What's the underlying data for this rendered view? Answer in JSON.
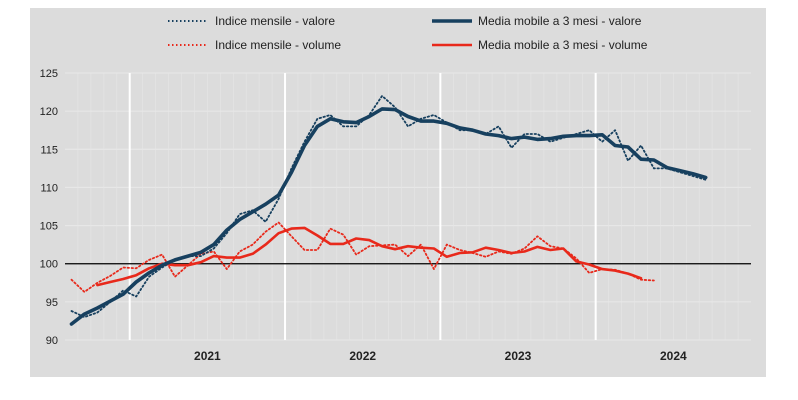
{
  "colors": {
    "background": "#dcdcdc",
    "value": "#17405f",
    "volume": "#e8291b",
    "reference_line": "#000000",
    "grid_major": "#ffffff"
  },
  "chart_data": {
    "type": "line",
    "title": "",
    "xlabel": "",
    "ylabel": "",
    "ylim": [
      90,
      125
    ],
    "y_ticks": [
      90,
      95,
      100,
      105,
      110,
      115,
      120,
      125
    ],
    "y_tick_labels": [
      "90",
      "95",
      "100",
      "105",
      "110",
      "115",
      "120",
      "125"
    ],
    "x_labels": [
      "2021",
      "2022",
      "2023",
      "2024"
    ],
    "x_start": "2020-08",
    "x_end": "2024-12",
    "reference_value": 100,
    "grid": "vertical lines at year boundaries",
    "legend_position": "top",
    "series": [
      {
        "name": "Indice mensile - valore",
        "style": "dotted",
        "color": "#17405f",
        "start": "2020-08",
        "values": [
          93.8,
          93.0,
          93.6,
          95.0,
          96.5,
          95.7,
          98.3,
          99.5,
          100.5,
          101.0,
          101.0,
          102.0,
          104.0,
          106.5,
          107.0,
          105.5,
          108.5,
          112.5,
          116.0,
          119.0,
          119.5,
          118.0,
          118.0,
          119.5,
          122.0,
          120.5,
          118.0,
          119.0,
          119.5,
          118.5,
          117.5,
          117.5,
          117.0,
          118.0,
          115.2,
          117.0,
          117.0,
          116.0,
          116.5,
          117.0,
          117.5,
          116.0,
          117.5,
          113.5,
          115.5,
          112.5,
          112.5,
          112.0,
          111.5,
          111.0
        ]
      },
      {
        "name": "Media mobile a 3 mesi - valore",
        "style": "solid",
        "color": "#17405f",
        "start": "2020-08",
        "values": [
          92.1,
          93.4,
          94.2,
          95.1,
          96.0,
          97.6,
          98.8,
          99.8,
          100.5,
          101.0,
          101.5,
          102.5,
          104.4,
          105.8,
          106.8,
          107.8,
          109.0,
          112.0,
          115.5,
          118.0,
          119.0,
          118.6,
          118.5,
          119.3,
          120.3,
          120.2,
          119.3,
          118.7,
          118.7,
          118.4,
          117.8,
          117.5,
          117.0,
          116.8,
          116.4,
          116.6,
          116.3,
          116.4,
          116.7,
          116.8,
          116.8,
          116.9,
          115.5,
          115.3,
          113.7,
          113.6,
          112.6,
          112.2,
          111.8,
          111.3
        ]
      },
      {
        "name": "Indice mensile - volume",
        "style": "dotted",
        "color": "#e8291b",
        "start": "2020-08",
        "values": [
          97.9,
          96.3,
          97.5,
          98.4,
          99.5,
          99.4,
          100.5,
          101.2,
          98.3,
          99.8,
          101.3,
          101.6,
          99.3,
          101.6,
          102.5,
          104.2,
          105.4,
          103.6,
          101.8,
          101.8,
          104.6,
          103.8,
          101.2,
          102.3,
          102.4,
          102.5,
          101.0,
          102.5,
          99.3,
          102.5,
          101.8,
          101.4,
          100.9,
          101.6,
          101.3,
          102.0,
          103.6,
          102.3,
          102.0,
          100.7,
          98.8,
          99.3,
          99.2,
          98.7,
          97.9,
          97.8
        ]
      },
      {
        "name": "Media mobile a 3 mesi - volume",
        "style": "solid",
        "color": "#e8291b",
        "start": "2020-10",
        "values": [
          97.2,
          97.6,
          98.0,
          98.5,
          99.4,
          100.0,
          99.8,
          99.8,
          100.2,
          101.0,
          100.8,
          100.8,
          101.3,
          102.5,
          104.0,
          104.6,
          104.7,
          103.7,
          102.6,
          102.6,
          103.3,
          103.1,
          102.3,
          101.9,
          102.3,
          102.1,
          102.0,
          100.9,
          101.4,
          101.5,
          102.1,
          101.8,
          101.4,
          101.6,
          102.2,
          101.8,
          102.0,
          100.3,
          99.9,
          99.3,
          99.1,
          98.7,
          98.1
        ]
      }
    ]
  }
}
